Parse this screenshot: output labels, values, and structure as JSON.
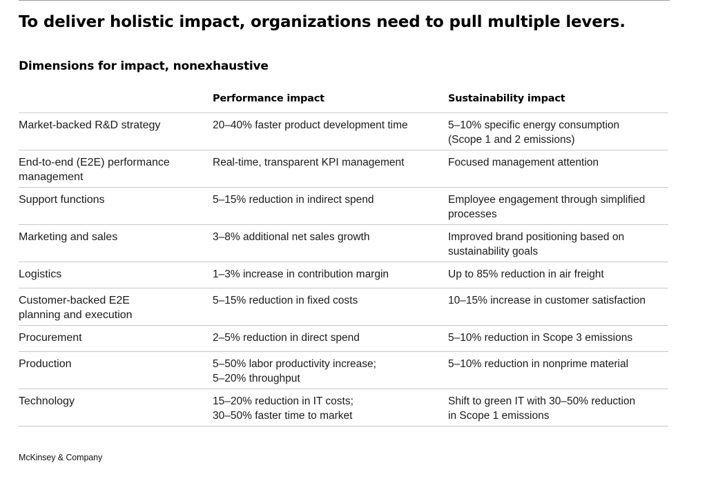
{
  "title": "To deliver holistic impact, organizations need to pull multiple levers.",
  "subtitle": "Dimensions for impact, nonexhaustive",
  "table": {
    "headers": [
      "",
      "Performance impact",
      "Sustainability impact"
    ],
    "rows": [
      {
        "dimension": "Market-backed R&D strategy",
        "performance": "20–40% faster product development time",
        "sustainability": "5–10% specific energy consumption\n(Scope 1 and 2 emissions)"
      },
      {
        "dimension": "End-to-end (E2E) performance\nmanagement",
        "performance": "Real-time, transparent KPI management",
        "sustainability": "Focused management attention"
      },
      {
        "dimension": "Support functions",
        "performance": "5–15% reduction in indirect spend",
        "sustainability": "Employee engagement through simplified\nprocesses"
      },
      {
        "dimension": "Marketing and sales",
        "performance": "3–8% additional net sales growth",
        "sustainability": "Improved brand positioning based on\nsustainability goals"
      },
      {
        "dimension": "Logistics",
        "performance": "1–3% increase in contribution margin",
        "sustainability": "Up to 85% reduction in air freight"
      },
      {
        "dimension": "Customer-backed E2E\nplanning and execution",
        "performance": "5–15% reduction in fixed costs",
        "sustainability": "10–15% increase in customer satisfaction"
      },
      {
        "dimension": "Procurement",
        "performance": "2–5% reduction in direct spend",
        "sustainability": "5–10% reduction in Scope 3 emissions"
      },
      {
        "dimension": "Production",
        "performance": "5–50% labor productivity increase;\n5–20% throughput",
        "sustainability": "5–10% reduction in nonprime material"
      },
      {
        "dimension": "Technology",
        "performance": "15–20% reduction in IT costs;\n30–50% faster time to market",
        "sustainability": "Shift to green IT with 30–50% reduction\nin Scope 1 emissions"
      }
    ]
  },
  "footer": "McKinsey & Company"
}
